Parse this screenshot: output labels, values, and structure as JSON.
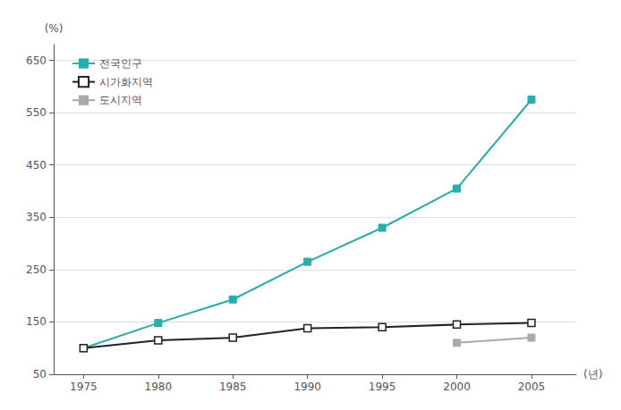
{
  "chart_data": {
    "type": "line",
    "xlabel": "(년)",
    "ylabel": "(%)",
    "x": [
      1975,
      1980,
      1985,
      1990,
      1995,
      2000,
      2005
    ],
    "series": [
      {
        "name": "전국인구",
        "color": "#2aacaa",
        "marker": "square",
        "values": [
          100,
          148,
          193,
          265,
          330,
          405,
          575
        ]
      },
      {
        "name": "시가화지역",
        "color": "#222222",
        "marker": "open_square",
        "values": [
          100,
          115,
          120,
          138,
          140,
          145,
          148
        ]
      },
      {
        "name": "도시지역",
        "color": "#aaaaaa",
        "marker": "square",
        "x": [
          2000,
          2005
        ],
        "values": [
          110,
          120
        ]
      }
    ],
    "xlim": [
      1973,
      2008
    ],
    "xticks": [
      1975,
      1980,
      1985,
      1990,
      1995,
      2000,
      2005
    ],
    "ylim": [
      50,
      680
    ],
    "yticks": [
      50,
      150,
      250,
      350,
      450,
      550,
      650
    ],
    "grid": true,
    "legend": "upper left"
  }
}
